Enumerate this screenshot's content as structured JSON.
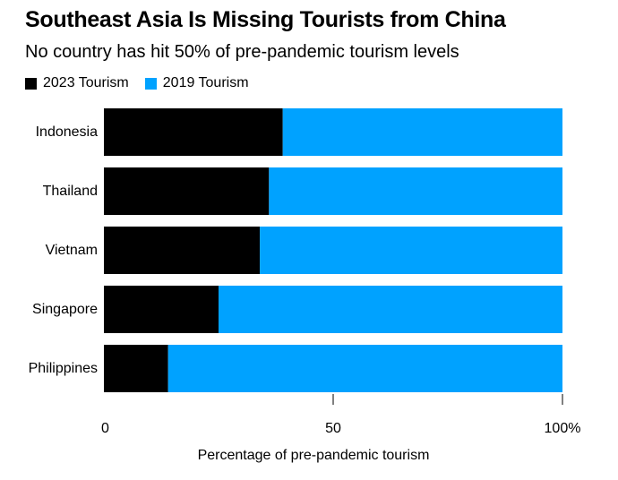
{
  "chart_data": {
    "type": "bar",
    "orientation": "horizontal",
    "stacked": true,
    "title": "Southeast Asia Is Missing Tourists from China",
    "subtitle": "No country has hit 50% of pre-pandemic tourism levels",
    "xlabel": "Percentage of pre-pandemic tourism",
    "ylabel": "",
    "xlim": [
      0,
      100
    ],
    "xticks": [
      0,
      50,
      100
    ],
    "xtick_labels": [
      "0",
      "50",
      "100%"
    ],
    "categories": [
      "Indonesia",
      "Thailand",
      "Vietnam",
      "Singapore",
      "Philippines"
    ],
    "series": [
      {
        "name": "2023 Tourism",
        "color": "#000000",
        "values": [
          39,
          36,
          34,
          25,
          14
        ]
      },
      {
        "name": "2019 Tourism",
        "color": "#00a2ff",
        "values": [
          61,
          64,
          66,
          75,
          86
        ]
      }
    ],
    "legend": {
      "position": "top-left",
      "items": [
        {
          "label": "2023 Tourism",
          "color": "#000000"
        },
        {
          "label": "2019 Tourism",
          "color": "#00a2ff"
        }
      ]
    }
  }
}
